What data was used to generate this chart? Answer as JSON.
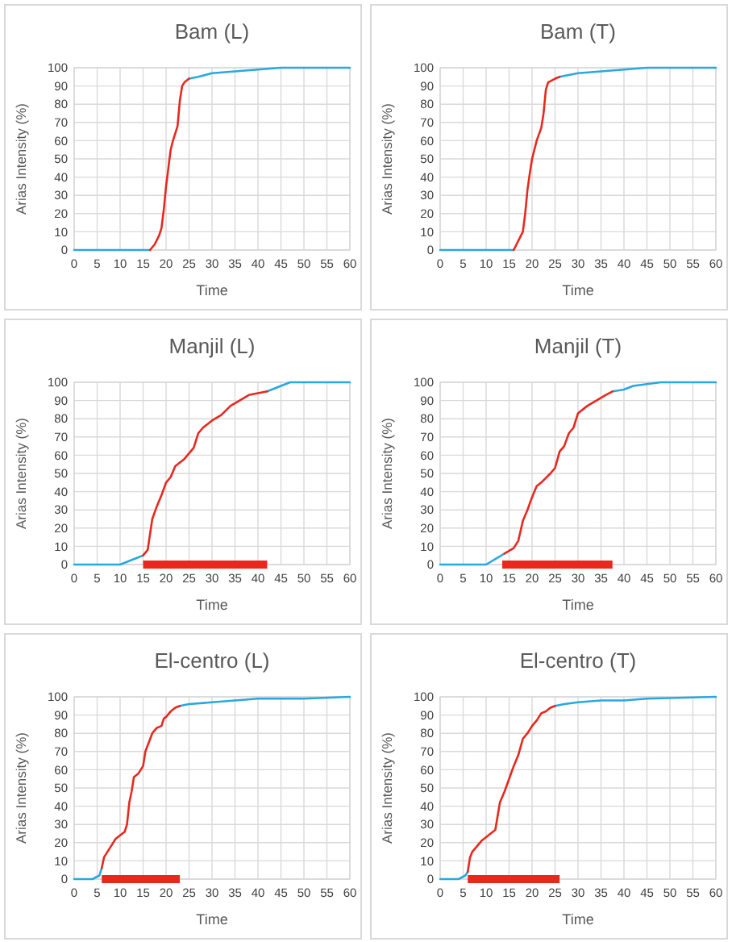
{
  "chart_data": [
    {
      "type": "line",
      "title": "Bam (L)",
      "xlabel": "Time",
      "ylabel": "Arias Intensity (%)",
      "xlim": [
        0,
        60
      ],
      "ylim": [
        0,
        100
      ],
      "xticks": [
        0,
        5,
        10,
        15,
        20,
        25,
        30,
        35,
        40,
        45,
        50,
        55,
        60
      ],
      "yticks": [
        0,
        10,
        20,
        30,
        40,
        50,
        60,
        70,
        80,
        90,
        100
      ],
      "grid": true,
      "series": [
        {
          "color": "#29a8e0",
          "x": [
            0,
            16.5
          ],
          "values": [
            0,
            0
          ]
        },
        {
          "color": "#29a8e0",
          "x": [
            25,
            27,
            30,
            35,
            40,
            45,
            60
          ],
          "values": [
            94,
            95,
            97,
            98,
            99,
            100,
            100
          ]
        },
        {
          "color": "#e8281e",
          "x": [
            16.5,
            17.5,
            18.5,
            19,
            19.5,
            20,
            20.5,
            21,
            21.5,
            22,
            22.5,
            23,
            23.5,
            24,
            25
          ],
          "values": [
            0,
            3,
            8,
            12,
            22,
            35,
            45,
            55,
            60,
            64,
            68,
            82,
            90,
            92,
            94
          ]
        }
      ]
    },
    {
      "type": "line",
      "title": "Bam (T)",
      "xlabel": "Time",
      "ylabel": "Arias Intensity (%)",
      "xlim": [
        0,
        60
      ],
      "ylim": [
        0,
        100
      ],
      "xticks": [
        0,
        5,
        10,
        15,
        20,
        25,
        30,
        35,
        40,
        45,
        50,
        55,
        60
      ],
      "yticks": [
        0,
        10,
        20,
        30,
        40,
        50,
        60,
        70,
        80,
        90,
        100
      ],
      "grid": true,
      "series": [
        {
          "color": "#29a8e0",
          "x": [
            0,
            16
          ],
          "values": [
            0,
            0
          ]
        },
        {
          "color": "#29a8e0",
          "x": [
            26,
            30,
            35,
            40,
            45,
            60
          ],
          "values": [
            95,
            97,
            98,
            99,
            100,
            100
          ]
        },
        {
          "color": "#e8281e",
          "x": [
            16,
            17,
            18,
            18.5,
            19,
            19.5,
            20,
            21,
            22,
            22.5,
            23,
            23.5,
            25,
            26
          ],
          "values": [
            0,
            5,
            10,
            20,
            33,
            42,
            50,
            60,
            67,
            75,
            88,
            92,
            94,
            95
          ]
        }
      ]
    },
    {
      "type": "line",
      "title": "Manjil (L)",
      "xlabel": "Time",
      "ylabel": "Arias Intensity (%)",
      "xlim": [
        0,
        60
      ],
      "ylim": [
        0,
        100
      ],
      "xticks": [
        0,
        5,
        10,
        15,
        20,
        25,
        30,
        35,
        40,
        45,
        50,
        55,
        60
      ],
      "yticks": [
        0,
        10,
        20,
        30,
        40,
        50,
        60,
        70,
        80,
        90,
        100
      ],
      "grid": true,
      "series": [
        {
          "color": "#29a8e0",
          "x": [
            0,
            10,
            15
          ],
          "values": [
            0,
            0,
            5
          ]
        },
        {
          "color": "#29a8e0",
          "x": [
            42,
            45,
            47,
            60
          ],
          "values": [
            95,
            98,
            100,
            100
          ]
        },
        {
          "color": "#e8281e",
          "x": [
            15,
            16,
            17,
            18,
            19,
            20,
            21,
            22,
            24,
            26,
            27,
            28,
            30,
            32,
            34,
            36,
            38,
            40,
            42
          ],
          "values": [
            5,
            8,
            25,
            32,
            38,
            45,
            48,
            54,
            58,
            64,
            72,
            75,
            79,
            82,
            87,
            90,
            93,
            94,
            95
          ]
        },
        {
          "color": "#e8281e",
          "x": [
            15,
            42
          ],
          "values": [
            0,
            0
          ]
        }
      ]
    },
    {
      "type": "line",
      "title": "Manjil (T)",
      "xlabel": "Time",
      "ylabel": "Arias Intensity (%)",
      "xlim": [
        0,
        60
      ],
      "ylim": [
        0,
        100
      ],
      "xticks": [
        0,
        5,
        10,
        15,
        20,
        25,
        30,
        35,
        40,
        45,
        50,
        55,
        60
      ],
      "yticks": [
        0,
        10,
        20,
        30,
        40,
        50,
        60,
        70,
        80,
        90,
        100
      ],
      "grid": true,
      "series": [
        {
          "color": "#29a8e0",
          "x": [
            0,
            10,
            14
          ],
          "values": [
            0,
            0,
            6
          ]
        },
        {
          "color": "#29a8e0",
          "x": [
            37.5,
            40,
            42,
            45,
            48,
            60
          ],
          "values": [
            95,
            96,
            98,
            99,
            100,
            100
          ]
        },
        {
          "color": "#e8281e",
          "x": [
            14,
            16,
            17,
            18,
            19,
            20,
            21,
            22,
            24,
            25,
            26,
            27,
            28,
            29,
            30,
            32,
            34,
            36,
            37.5
          ],
          "values": [
            6,
            9,
            13,
            24,
            30,
            37,
            43,
            45,
            50,
            53,
            62,
            65,
            72,
            75,
            83,
            87,
            90,
            93,
            95
          ]
        },
        {
          "color": "#e8281e",
          "x": [
            13.5,
            37.5
          ],
          "values": [
            0,
            0
          ]
        }
      ]
    },
    {
      "type": "line",
      "title": "El-centro (L)",
      "xlabel": "Time",
      "ylabel": "Arias Intensity (%)",
      "xlim": [
        0,
        60
      ],
      "ylim": [
        0,
        100
      ],
      "xticks": [
        0,
        5,
        10,
        15,
        20,
        25,
        30,
        35,
        40,
        45,
        50,
        55,
        60
      ],
      "yticks": [
        0,
        10,
        20,
        30,
        40,
        50,
        60,
        70,
        80,
        90,
        100
      ],
      "grid": true,
      "series": [
        {
          "color": "#29a8e0",
          "x": [
            0,
            4,
            5.5,
            6
          ],
          "values": [
            0,
            0,
            2,
            6
          ]
        },
        {
          "color": "#29a8e0",
          "x": [
            23,
            25,
            30,
            35,
            40,
            50,
            60
          ],
          "values": [
            95,
            96,
            97,
            98,
            99,
            99,
            100
          ]
        },
        {
          "color": "#e8281e",
          "x": [
            6,
            6.5,
            7,
            8,
            9,
            10,
            11,
            11.5,
            12,
            12.5,
            13,
            14,
            15,
            15.5,
            17,
            18,
            19,
            19.5,
            20,
            21,
            22,
            23
          ],
          "values": [
            6,
            12,
            14,
            18,
            22,
            24,
            26,
            30,
            42,
            48,
            56,
            58,
            62,
            70,
            80,
            83,
            84,
            88,
            89,
            92,
            94,
            95
          ]
        },
        {
          "color": "#e8281e",
          "x": [
            6,
            23
          ],
          "values": [
            0,
            0
          ]
        }
      ]
    },
    {
      "type": "line",
      "title": "El-centro (T)",
      "xlabel": "Time",
      "ylabel": "Arias Intensity (%)",
      "xlim": [
        0,
        60
      ],
      "ylim": [
        0,
        100
      ],
      "xticks": [
        0,
        5,
        10,
        15,
        20,
        25,
        30,
        35,
        40,
        45,
        50,
        55,
        60
      ],
      "yticks": [
        0,
        10,
        20,
        30,
        40,
        50,
        60,
        70,
        80,
        90,
        100
      ],
      "grid": true,
      "series": [
        {
          "color": "#29a8e0",
          "x": [
            0,
            4,
            5.5,
            6
          ],
          "values": [
            0,
            0,
            2,
            4
          ]
        },
        {
          "color": "#29a8e0",
          "x": [
            25,
            27,
            30,
            35,
            40,
            45,
            60
          ],
          "values": [
            95,
            96,
            97,
            98,
            98,
            99,
            100
          ]
        },
        {
          "color": "#e8281e",
          "x": [
            6,
            6.5,
            7,
            8,
            9,
            10,
            11,
            12,
            13,
            14,
            15,
            16,
            17,
            18,
            19,
            20,
            21,
            22,
            23,
            24,
            25
          ],
          "values": [
            4,
            12,
            15,
            18,
            21,
            23,
            25,
            27,
            42,
            48,
            55,
            62,
            68,
            77,
            80,
            84,
            87,
            91,
            92,
            94,
            95
          ]
        },
        {
          "color": "#e8281e",
          "x": [
            6,
            26
          ],
          "values": [
            0,
            0
          ]
        }
      ]
    }
  ]
}
